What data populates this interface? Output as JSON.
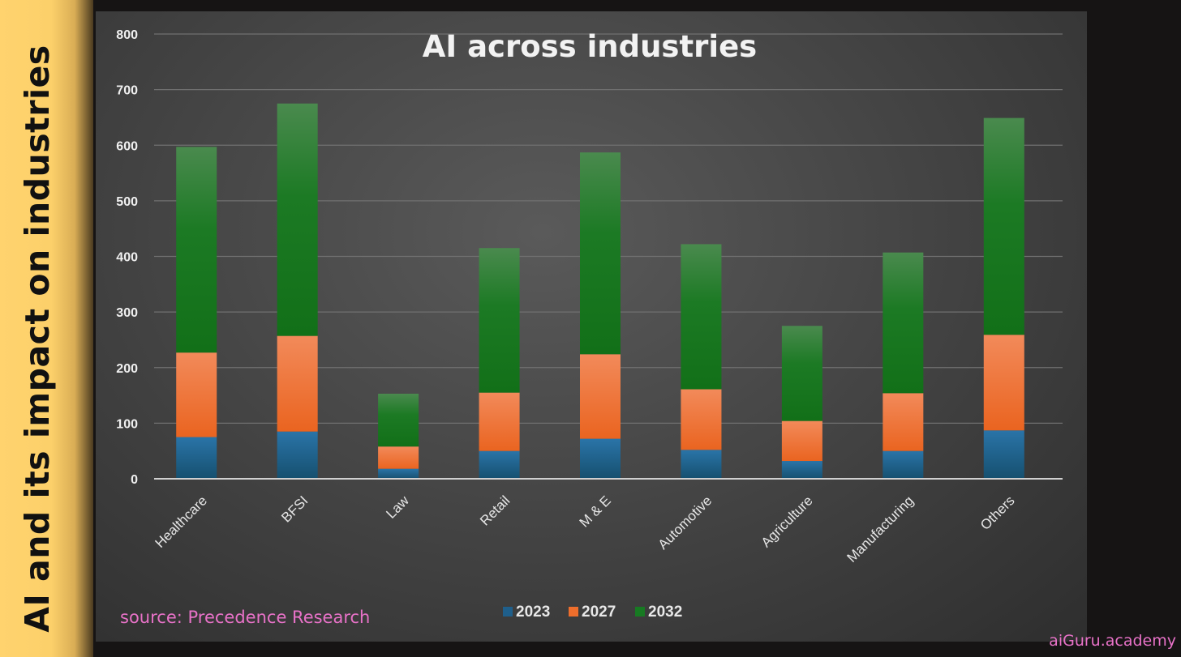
{
  "side_title": "AI and its impact on industries",
  "source_note": "source: Precedence Research",
  "brand": "aiGuru.academy",
  "colors": {
    "2023": "#1f5f8b",
    "2027": "#ee6e2c",
    "2032": "#177a22",
    "grid": "#707070",
    "axis": "#cfcfcf"
  },
  "chart_data": {
    "type": "bar",
    "stacked": true,
    "title": "AI across industries",
    "xlabel": "",
    "ylabel": "",
    "ylim": [
      0,
      800
    ],
    "yticks": [
      "0",
      "100",
      "200",
      "300",
      "400",
      "500",
      "600",
      "700",
      "800"
    ],
    "grid": true,
    "legend_position": "bottom-center",
    "categories": [
      "Healthcare",
      "BFSI",
      "Law",
      "Retail",
      "M & E",
      "Automotive",
      "Agriculture",
      "Manufacturing",
      "Others"
    ],
    "series": [
      {
        "name": "2023",
        "values": [
          75,
          85,
          18,
          50,
          72,
          52,
          32,
          50,
          87
        ]
      },
      {
        "name": "2027",
        "values": [
          152,
          172,
          40,
          105,
          152,
          109,
          72,
          104,
          172
        ]
      },
      {
        "name": "2032",
        "values": [
          370,
          418,
          95,
          260,
          363,
          261,
          171,
          253,
          390
        ]
      }
    ]
  }
}
